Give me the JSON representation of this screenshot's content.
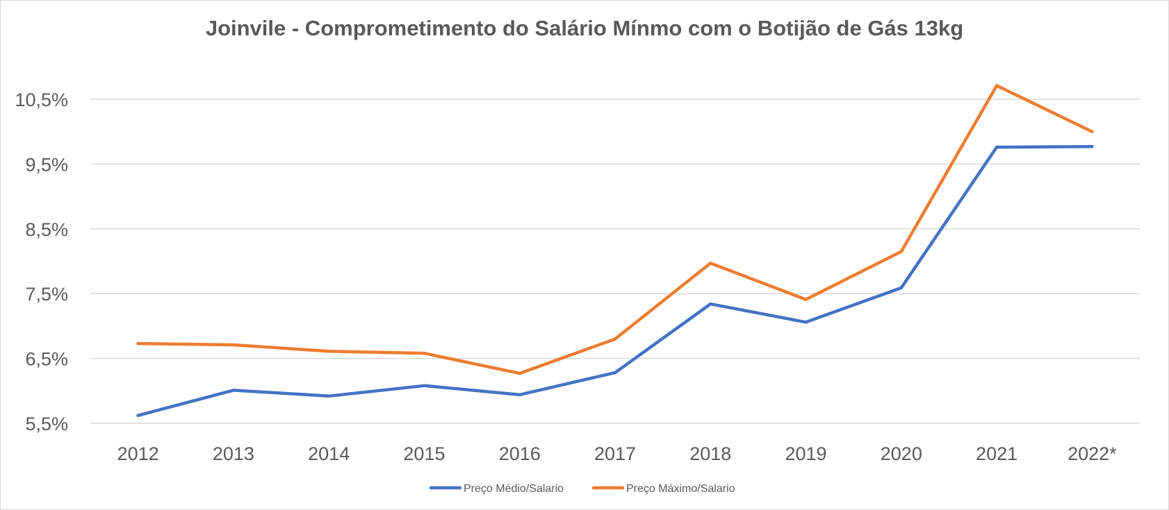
{
  "chart_data": {
    "type": "line",
    "title": "Joinvile - Comprometimento do Salário Mínmo com o Botijão de Gás 13kg",
    "xlabel": "",
    "ylabel": "",
    "categories": [
      "2012",
      "2013",
      "2014",
      "2015",
      "2016",
      "2017",
      "2018",
      "2019",
      "2020",
      "2021",
      "2022*"
    ],
    "y_ticks": [
      "5,5%",
      "6,5%",
      "7,5%",
      "8,5%",
      "9,5%",
      "10,5%"
    ],
    "y_tick_values": [
      5.5,
      6.5,
      7.5,
      8.5,
      9.5,
      10.5
    ],
    "ylim": [
      5.5,
      10.5
    ],
    "grid": true,
    "legend_position": "bottom",
    "series": [
      {
        "name": "Preço Médio/Salario",
        "color": "#4472c4",
        "values": [
          5.62,
          6.01,
          5.92,
          6.08,
          5.94,
          6.28,
          7.34,
          7.06,
          7.59,
          9.76,
          9.77
        ]
      },
      {
        "name": "Preço Máximo/Salario",
        "color": "#ed7d31",
        "values": [
          6.73,
          6.71,
          6.61,
          6.58,
          6.27,
          6.8,
          7.97,
          7.41,
          8.15,
          10.71,
          10.0
        ]
      }
    ]
  }
}
